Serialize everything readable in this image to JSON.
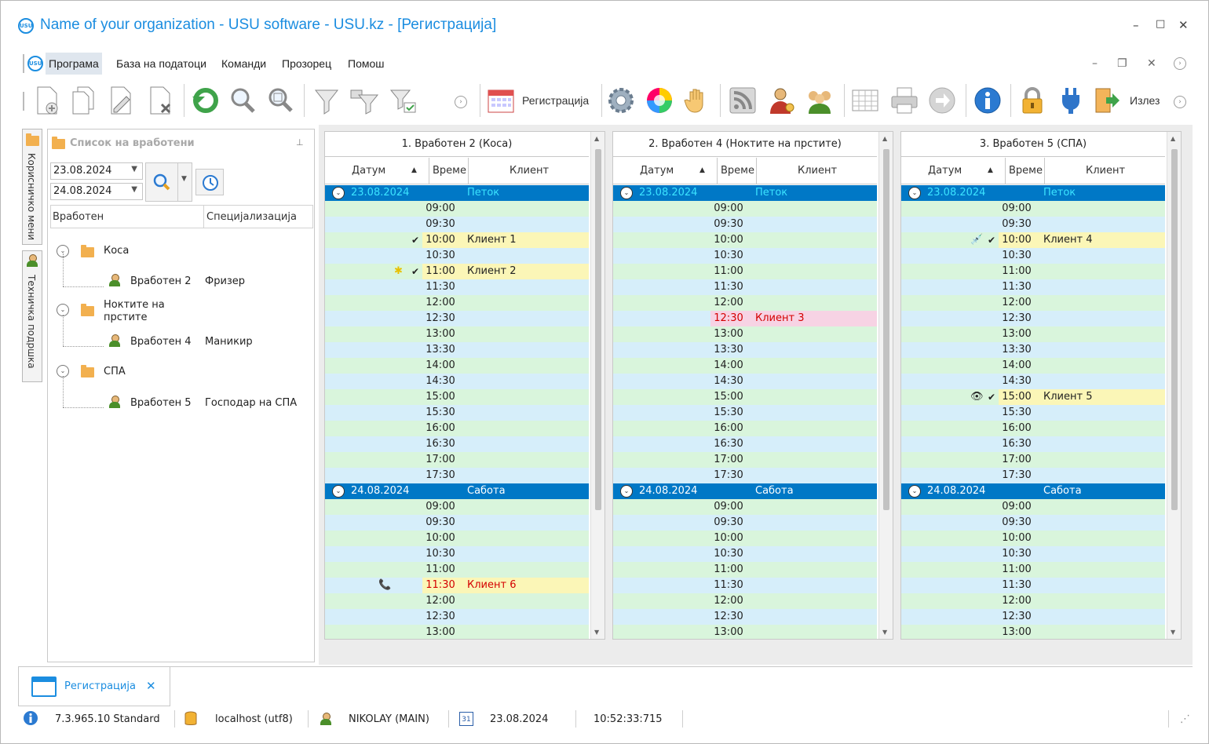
{
  "window": {
    "title": "Name of your organization - USU software - USU.kz - [Регистрација]",
    "logo_text": "USU",
    "controls": {
      "minimize": "–",
      "maximize": "□",
      "close": "✕"
    }
  },
  "menu": {
    "items": [
      {
        "label": "Програма"
      },
      {
        "label": "База на податоци"
      },
      {
        "label": "Команди"
      },
      {
        "label": "Прозорец"
      },
      {
        "label": "Помош"
      }
    ],
    "mdi_controls": {
      "minimize": "–",
      "restore": "❐",
      "close": "✕",
      "circle": "⇲"
    }
  },
  "toolbar": {
    "registration_label": "Регистрација",
    "exit_label": "Излез",
    "icons": [
      "add-icon",
      "copy-icon",
      "edit-icon",
      "delete-icon",
      "refresh-icon",
      "search-icon",
      "zoom-icon",
      "filter-icon",
      "filter-settings-icon",
      "filter-clear-icon",
      "registration-calendar-icon",
      "settings-gear-icon",
      "color-wheel-icon",
      "hand-icon",
      "rss-icon",
      "user-key-icon",
      "users-icon",
      "table-icon",
      "printer-icon",
      "forward-icon",
      "info-icon",
      "lock-icon",
      "plug-icon",
      "exit-icon"
    ]
  },
  "side_tabs": {
    "useful_menu": "Корисничко мени",
    "tech_support": "Техничка подршка"
  },
  "employee_panel": {
    "title": "Список на вработени",
    "date_from": "23.08.2024",
    "date_to": "24.08.2024",
    "columns": {
      "employee": "Вработен",
      "specialization": "Специјализација"
    },
    "groups": [
      {
        "name": "Коса",
        "employees": [
          {
            "name": "Вработен 2",
            "spec": "Фризер"
          }
        ]
      },
      {
        "name": "Ноктите на прстите",
        "employees": [
          {
            "name": "Вработен 4",
            "spec": "Маникир"
          }
        ]
      },
      {
        "name": "СПА",
        "employees": [
          {
            "name": "Вработен 5",
            "spec": "Господар на СПА"
          }
        ]
      }
    ]
  },
  "schedule": {
    "col_date": "Датум",
    "col_time": "Време",
    "col_client": "Клиент",
    "day1": {
      "date": "23.08.2024",
      "name": "Петок"
    },
    "day2": {
      "date": "24.08.2024",
      "name": "Сабота"
    },
    "times_day1": [
      "09:00",
      "09:30",
      "10:00",
      "10:30",
      "11:00",
      "11:30",
      "12:00",
      "12:30",
      "13:00",
      "13:30",
      "14:00",
      "14:30",
      "15:00",
      "15:30",
      "16:00",
      "16:30",
      "17:00",
      "17:30"
    ],
    "times_day2": [
      "09:00",
      "09:30",
      "10:00",
      "10:30",
      "11:00",
      "11:30",
      "12:00",
      "12:30",
      "13:00"
    ],
    "panels": [
      {
        "title": "1. Вработен 2 (Коса)",
        "day1": {
          "10:00": {
            "client": "Клиент 1",
            "status": "yellow",
            "check": true
          },
          "11:00": {
            "client": "Клиент 2",
            "status": "yellow",
            "check": true,
            "icon": "✱",
            "icon_name": "sun-icon"
          }
        },
        "day2": {
          "11:30": {
            "client": "Клиент 6",
            "status": "yellow",
            "red_text": true,
            "icon": "📞",
            "icon_name": "phone-icon"
          }
        }
      },
      {
        "title": "2. Вработен 4 (Ноктите на прстите)",
        "day1": {
          "12:30": {
            "client": "Клиент 3",
            "status": "pink",
            "red_text": true
          }
        },
        "day2": {}
      },
      {
        "title": "3. Вработен 5 (СПА)",
        "day1": {
          "10:00": {
            "client": "Клиент 4",
            "status": "yellow",
            "check": true,
            "icon": "💉",
            "icon_name": "syringe-icon"
          },
          "15:00": {
            "client": "Клиент 5",
            "status": "yellow",
            "check": true,
            "icon": "👁",
            "icon_name": "eye-icon"
          }
        },
        "day2": {}
      }
    ],
    "colors": {
      "row_a": "#d9f5dc",
      "row_b": "#d6eefa",
      "yellow": "#fbf6b7",
      "pink": "#f7d3e4",
      "day_bg": "#0078c6",
      "first_day_text": "#3be3ff",
      "red_text": "#d40000"
    }
  },
  "doc_tab": {
    "label": "Регистрација",
    "close": "✕"
  },
  "status": {
    "version": "7.3.965.10 Standard",
    "db": "localhost (utf8)",
    "user": "NIKOLAY (MAIN)",
    "calendar_day": "31",
    "date": "23.08.2024",
    "time": "10:52:33:715"
  }
}
